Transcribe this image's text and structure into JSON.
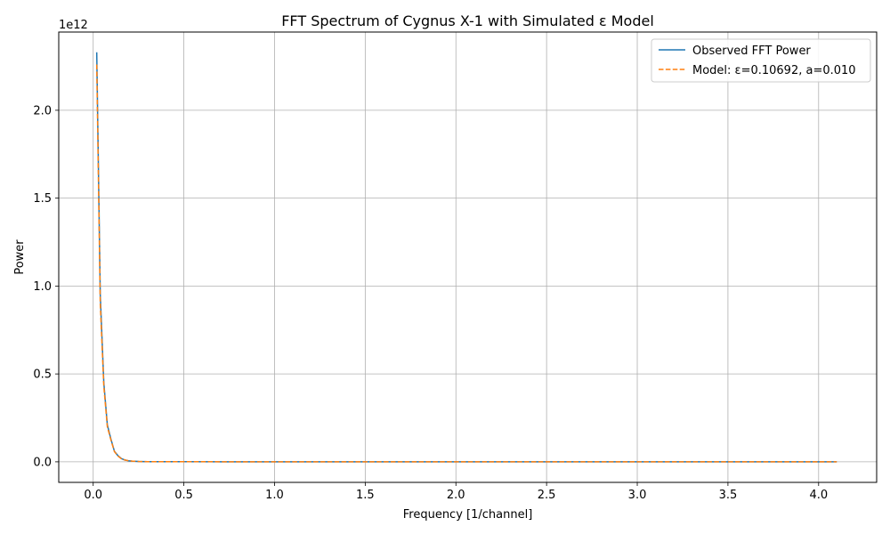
{
  "chart_data": {
    "type": "line",
    "title": "FFT Spectrum of Cygnus X-1 with Simulated ε Model",
    "xlabel": "Frequency [1/channel]",
    "ylabel": "Power",
    "y_offset_label": "1e12",
    "xlim": [
      -0.19,
      4.32
    ],
    "ylim": [
      -0.117,
      2.445
    ],
    "x_ticks": [
      0.0,
      0.5,
      1.0,
      1.5,
      2.0,
      2.5,
      3.0,
      3.5,
      4.0
    ],
    "x_tick_labels": [
      "0.0",
      "0.5",
      "1.0",
      "1.5",
      "2.0",
      "2.5",
      "3.0",
      "3.5",
      "4.0"
    ],
    "y_ticks": [
      0.0,
      0.5,
      1.0,
      1.5,
      2.0
    ],
    "y_tick_labels": [
      "0.0",
      "0.5",
      "1.0",
      "1.5",
      "2.0"
    ],
    "grid": true,
    "legend_position": "top-right",
    "series": [
      {
        "name": "Observed FFT Power",
        "color": "#1f77b4",
        "style": "solid",
        "x": [
          0.0195,
          0.039,
          0.0585,
          0.078,
          0.0975,
          0.117,
          0.1365,
          0.156,
          0.1755,
          0.195,
          0.2145,
          0.25,
          0.3,
          0.5,
          1.0,
          2.0,
          3.0,
          4.1
        ],
        "y": [
          2.33,
          0.95,
          0.45,
          0.21,
          0.13,
          0.06,
          0.035,
          0.018,
          0.01,
          0.006,
          0.004,
          0.002,
          0.001,
          0.0005,
          0.0002,
          0.0001,
          0.0001,
          0.0001
        ]
      },
      {
        "name": "Model: ε=0.10692, a=0.010",
        "color": "#ff7f0e",
        "style": "dashed",
        "x": [
          0.0195,
          0.039,
          0.0585,
          0.078,
          0.0975,
          0.117,
          0.1365,
          0.156,
          0.1755,
          0.195,
          0.2145,
          0.25,
          0.3,
          0.5,
          1.0,
          2.0,
          3.0,
          4.1
        ],
        "y": [
          2.26,
          0.9,
          0.43,
          0.2,
          0.125,
          0.058,
          0.033,
          0.017,
          0.01,
          0.006,
          0.004,
          0.002,
          0.001,
          0.0005,
          0.0002,
          0.0001,
          0.0001,
          0.0001
        ]
      }
    ]
  }
}
